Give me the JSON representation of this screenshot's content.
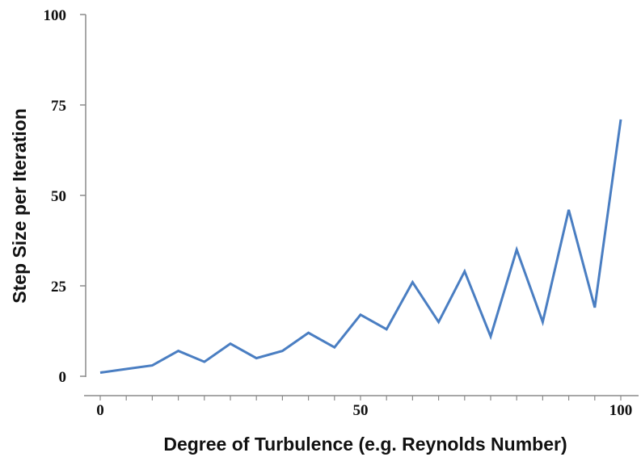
{
  "chart_data": {
    "type": "line",
    "xlabel": "Degree of Turbulence (e.g. Reynolds Number)",
    "ylabel": "Step Size per Iteration",
    "xlim": [
      0,
      100
    ],
    "ylim": [
      0,
      100
    ],
    "x_ticks": [
      0,
      50,
      100
    ],
    "y_ticks": [
      0,
      25,
      50,
      75,
      100
    ],
    "grid": false,
    "line_color": "#4a7ec2",
    "series": [
      {
        "x": [
          0,
          5,
          10,
          15,
          20,
          25,
          30,
          35,
          40,
          45,
          50,
          55,
          60,
          65,
          70,
          75,
          80,
          85,
          90,
          95,
          100
        ],
        "values": [
          1,
          2,
          3,
          7,
          4,
          9,
          5,
          7,
          12,
          8,
          17,
          13,
          26,
          15,
          29,
          11,
          35,
          15,
          46,
          19,
          71
        ]
      }
    ]
  }
}
